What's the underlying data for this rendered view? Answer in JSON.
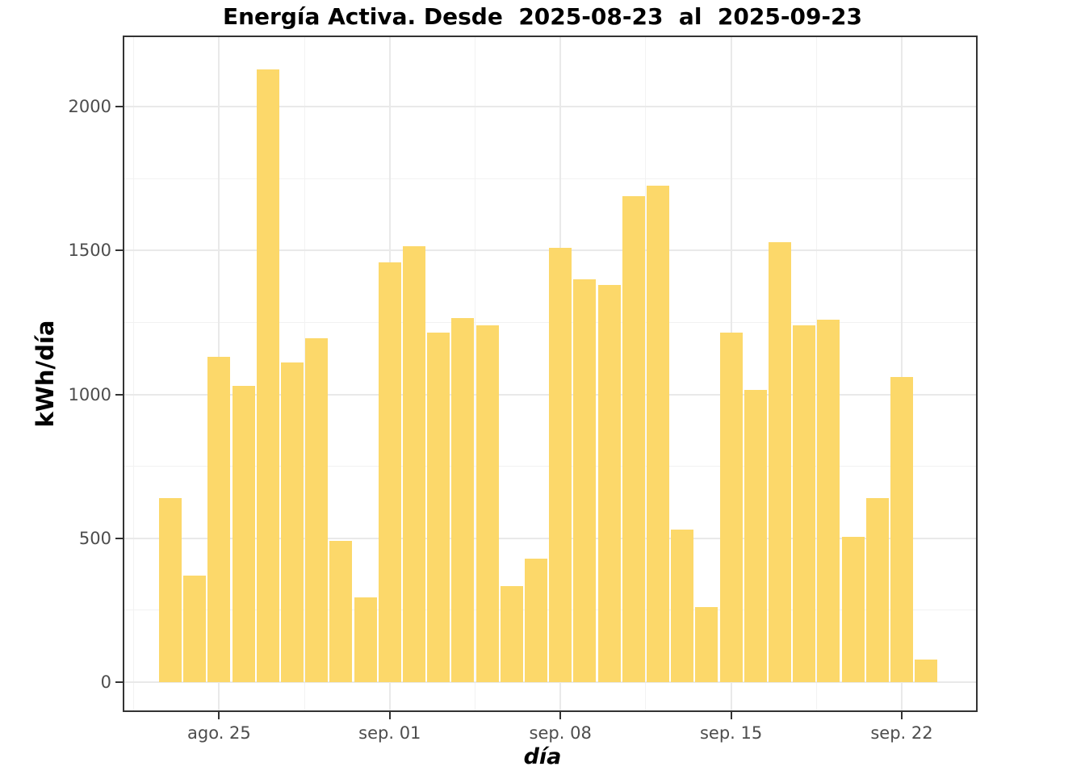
{
  "chart_data": {
    "type": "bar",
    "title": "Energía Activa. Desde  2025-08-23  al  2025-09-23",
    "xlabel": "día",
    "ylabel": "kWh/día",
    "categories": [
      "2025-08-23",
      "2025-08-24",
      "2025-08-25",
      "2025-08-26",
      "2025-08-27",
      "2025-08-28",
      "2025-08-29",
      "2025-08-30",
      "2025-08-31",
      "2025-09-01",
      "2025-09-02",
      "2025-09-03",
      "2025-09-04",
      "2025-09-05",
      "2025-09-06",
      "2025-09-07",
      "2025-09-08",
      "2025-09-09",
      "2025-09-10",
      "2025-09-11",
      "2025-09-12",
      "2025-09-13",
      "2025-09-14",
      "2025-09-15",
      "2025-09-16",
      "2025-09-17",
      "2025-09-18",
      "2025-09-19",
      "2025-09-20",
      "2025-09-21",
      "2025-09-22",
      "2025-09-23"
    ],
    "values": [
      640,
      370,
      1130,
      1030,
      2130,
      1110,
      1195,
      490,
      295,
      1460,
      1515,
      1215,
      1265,
      1240,
      335,
      430,
      1510,
      1400,
      1380,
      1690,
      1725,
      530,
      260,
      1215,
      1015,
      1530,
      1240,
      1260,
      505,
      640,
      1060,
      80
    ],
    "ylim": [
      0,
      2250
    ],
    "y_ticks": [
      0,
      500,
      1000,
      1500,
      2000
    ],
    "y_tick_labels": [
      "0",
      "500",
      "1000",
      "1500",
      "2000"
    ],
    "y_minor_ticks": [
      250,
      750,
      1250,
      1750
    ],
    "x_ticks": [
      {
        "day_index": 2,
        "label": "ago. 25"
      },
      {
        "day_index": 9,
        "label": "sep. 01"
      },
      {
        "day_index": 16,
        "label": "sep. 08"
      },
      {
        "day_index": 23,
        "label": "sep. 15"
      },
      {
        "day_index": 30,
        "label": "sep. 22"
      }
    ],
    "x_minor_day_indices": [
      -1.5,
      5.5,
      12.5,
      19.5,
      26.5
    ],
    "grid": true,
    "legend": "none",
    "colors": {
      "bar_fill": "#fcd86a",
      "bar_gap": "#ffffff",
      "grid_major": "#e9e9e9",
      "grid_minor": "#f2f2f2",
      "panel_border": "#333333",
      "tick_label": "#4d4d4d",
      "title_text": "#000000",
      "background": "#ffffff"
    }
  }
}
